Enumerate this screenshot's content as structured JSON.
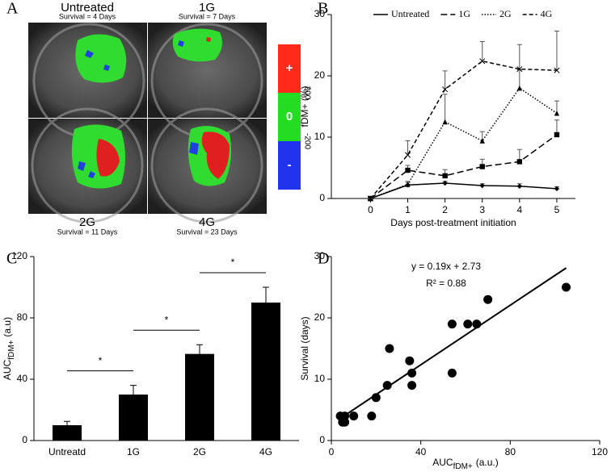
{
  "panel_a": {
    "label": "A",
    "images": [
      {
        "title": "Untreated",
        "caption": "Survival = 4 Days"
      },
      {
        "title": "1G",
        "caption": "Survival = 7 Days"
      },
      {
        "title": "2G",
        "caption": "Survival = 11 Days"
      },
      {
        "title": "4G",
        "caption": "Survival = 23 Days"
      }
    ],
    "colorbar": {
      "signs": [
        "+",
        "0",
        "-"
      ],
      "thresholds": [
        "200",
        "-200"
      ]
    }
  },
  "chart_data": [
    {
      "panel": "B",
      "type": "line",
      "xlabel": "Days post-treatment initiation",
      "ylabel": "fDM+ (%)",
      "x": [
        0,
        1,
        2,
        3,
        4,
        5
      ],
      "xlim": [
        -1.05,
        5.5
      ],
      "xticks": [
        0,
        1,
        2,
        3,
        4,
        5
      ],
      "ylim": [
        0,
        30
      ],
      "yticks": [
        0,
        10,
        20,
        30
      ],
      "legend": "top",
      "series": [
        {
          "name": "Untreated",
          "color": "#000000",
          "dash": "none",
          "marker": "diamond",
          "values": [
            0,
            2.2,
            2.5,
            2.1,
            2.0,
            1.6
          ],
          "errors": [
            0,
            0.4,
            0.3,
            0.3,
            0.4,
            0.3
          ]
        },
        {
          "name": "1G",
          "color": "#000000",
          "dash": "8,4",
          "marker": "square",
          "values": [
            0,
            4.6,
            3.7,
            5.2,
            6.0,
            10.4
          ],
          "errors": [
            0,
            0.8,
            1.0,
            1.2,
            2.0,
            2.4
          ]
        },
        {
          "name": "2G",
          "color": "#000000",
          "dash": "1.5,2",
          "marker": "triangle",
          "values": [
            0,
            2.3,
            12.5,
            9.4,
            18.0,
            13.9
          ],
          "errors": [
            0,
            0.5,
            4.5,
            1.5,
            3.0,
            2.0
          ]
        },
        {
          "name": "4G",
          "color": "#000000",
          "dash": "5,3",
          "marker": "x",
          "values": [
            0,
            7.1,
            17.8,
            22.4,
            21.1,
            20.9
          ],
          "errors": [
            0,
            2.3,
            3.0,
            3.2,
            4.0,
            6.4
          ]
        }
      ]
    },
    {
      "panel": "C",
      "type": "bar",
      "categories": [
        "Untreatd",
        "1G",
        "2G",
        "4G"
      ],
      "values": [
        10,
        30,
        56.5,
        90
      ],
      "errors": [
        2.5,
        6,
        6,
        10
      ],
      "color": "#000000",
      "ylim": [
        0,
        120
      ],
      "yticks": [
        0,
        40,
        80,
        120
      ],
      "ylabel": "AUC",
      "ylabel_subscript": "fDM+",
      "ylabel_unit": "(a.u)",
      "significance": [
        {
          "text": "*",
          "from": 0,
          "to": 1
        },
        {
          "text": "*",
          "from": 1,
          "to": 2
        },
        {
          "text": "*",
          "from": 2,
          "to": 3
        }
      ]
    },
    {
      "panel": "D",
      "type": "scatter",
      "x": [
        4,
        5,
        6,
        6,
        10,
        18,
        20,
        25,
        26,
        35,
        36,
        36,
        54,
        54,
        61,
        65,
        70,
        105
      ],
      "values": [
        4,
        3,
        3,
        4,
        4,
        4,
        7,
        9,
        15,
        13,
        11,
        9,
        11,
        19,
        19,
        19,
        23,
        25
      ],
      "xlim": [
        0,
        120
      ],
      "xticks": [
        0,
        40,
        80,
        120
      ],
      "ylim": [
        0,
        30
      ],
      "yticks": [
        0,
        10,
        20,
        30
      ],
      "ylabel": "Survival (days)",
      "xlabel": "AUC",
      "xlabel_subscript": "fDM+",
      "xlabel_unit": "(a.u.)",
      "equation": "y = 0.19x + 2.73",
      "r_squared": "R² = 0.88",
      "color": "#000000"
    }
  ]
}
